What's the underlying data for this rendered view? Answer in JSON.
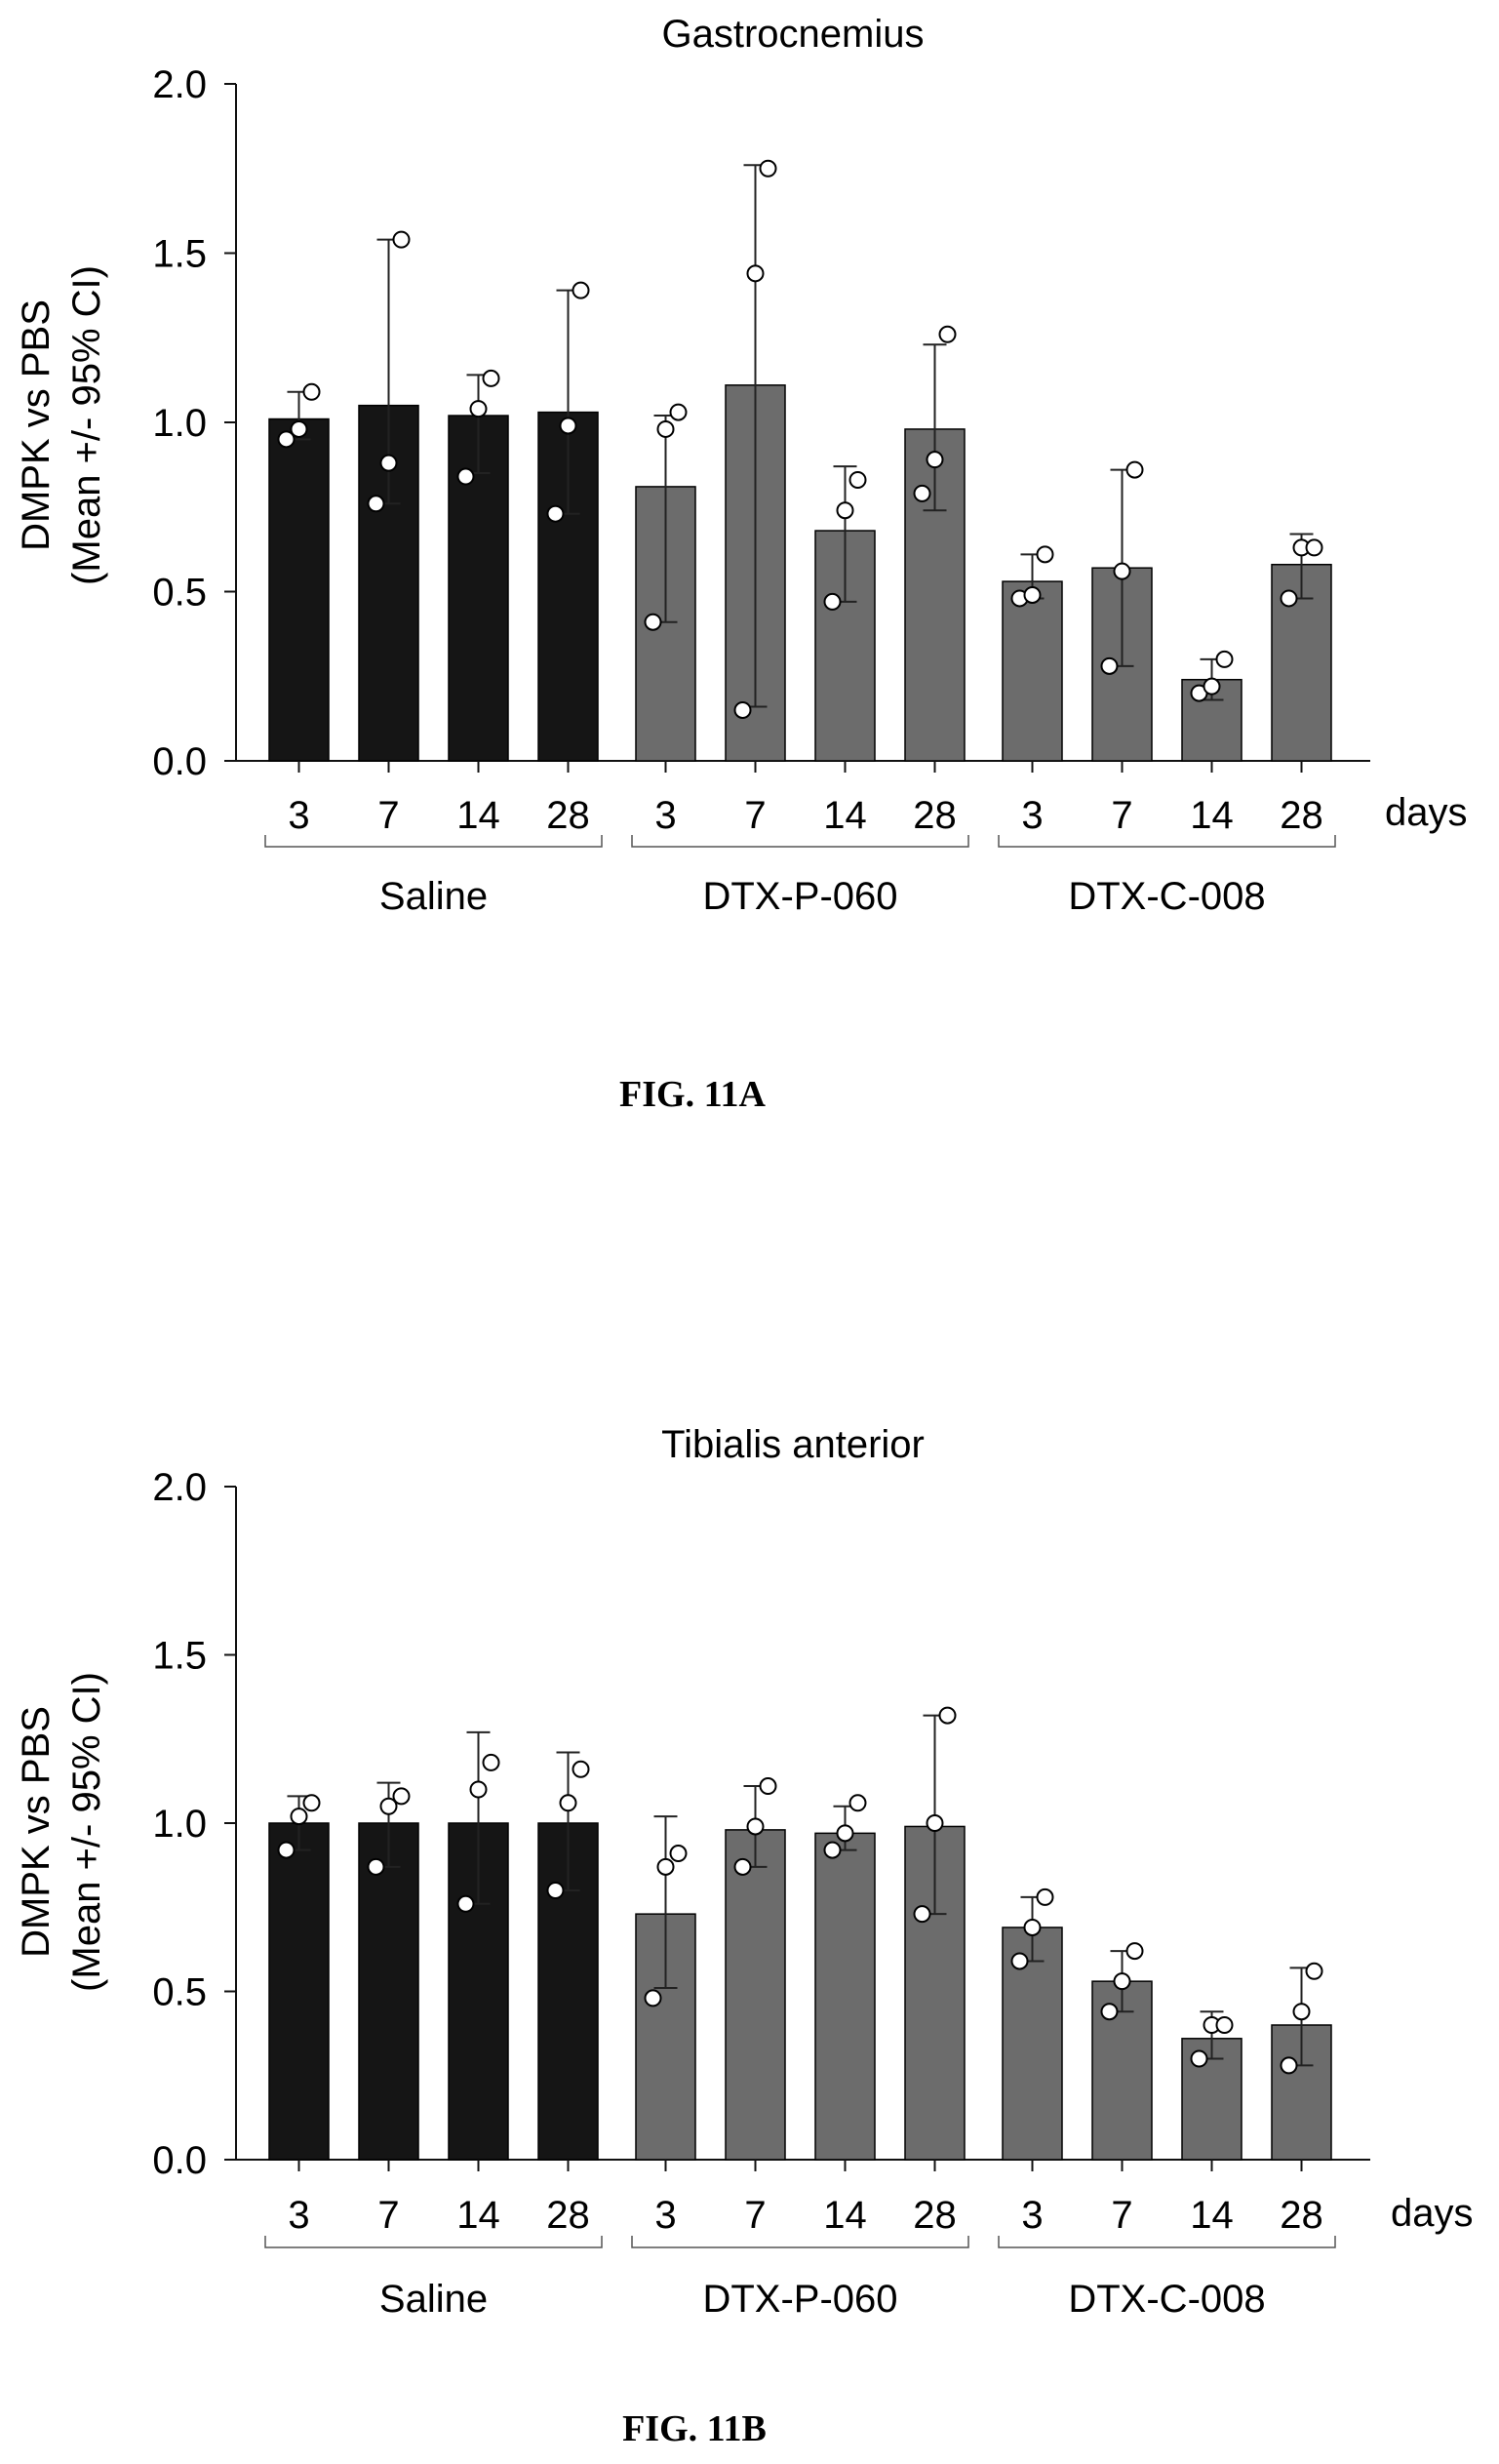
{
  "colors": {
    "saline": "#151515",
    "treated": "#6c6c6c",
    "axis": "#111111",
    "point_fill": "#ffffff"
  },
  "chart_data": [
    {
      "type": "bar",
      "title": "Gastrocnemius",
      "ylabel_line1": "DMPK vs PBS",
      "ylabel_line2": "(Mean +/- 95% CI)",
      "x_unit": "days",
      "ylim": [
        0,
        2.0
      ],
      "yticks": [
        "0.0",
        "0.5",
        "1.0",
        "1.5",
        "2.0"
      ],
      "categories": [
        "3",
        "7",
        "14",
        "28",
        "3",
        "7",
        "14",
        "28",
        "3",
        "7",
        "14",
        "28"
      ],
      "groups": [
        {
          "name": "Saline",
          "start": 0,
          "end": 3,
          "color_key": "saline"
        },
        {
          "name": "DTX-P-060",
          "start": 4,
          "end": 7,
          "color_key": "treated"
        },
        {
          "name": "DTX-C-008",
          "start": 8,
          "end": 11,
          "color_key": "treated"
        }
      ],
      "values": [
        1.01,
        1.05,
        1.02,
        1.03,
        0.81,
        1.11,
        0.68,
        0.98,
        0.53,
        0.57,
        0.24,
        0.58
      ],
      "ci_low": [
        0.95,
        0.76,
        0.85,
        0.73,
        0.41,
        0.16,
        0.47,
        0.74,
        0.48,
        0.28,
        0.18,
        0.48
      ],
      "ci_high": [
        1.09,
        1.54,
        1.14,
        1.39,
        1.02,
        1.76,
        0.87,
        1.23,
        0.61,
        0.86,
        0.3,
        0.67
      ],
      "points": [
        [
          0.95,
          0.98,
          1.09
        ],
        [
          0.76,
          0.88,
          1.54
        ],
        [
          0.84,
          1.04,
          1.13
        ],
        [
          0.73,
          0.99,
          1.39
        ],
        [
          0.41,
          0.98,
          1.03
        ],
        [
          0.15,
          1.44,
          1.75
        ],
        [
          0.47,
          0.74,
          0.83
        ],
        [
          0.79,
          0.89,
          1.26
        ],
        [
          0.48,
          0.49,
          0.61
        ],
        [
          0.28,
          0.56,
          0.86
        ],
        [
          0.2,
          0.22,
          0.3
        ],
        [
          0.48,
          0.63,
          0.63
        ]
      ],
      "caption": "FIG. 11A"
    },
    {
      "type": "bar",
      "title": "Tibialis anterior",
      "ylabel_line1": "DMPK vs PBS",
      "ylabel_line2": "(Mean +/- 95% CI)",
      "x_unit": "days",
      "ylim": [
        0,
        2.0
      ],
      "yticks": [
        "0.0",
        "0.5",
        "1.0",
        "1.5",
        "2.0"
      ],
      "categories": [
        "3",
        "7",
        "14",
        "28",
        "3",
        "7",
        "14",
        "28",
        "3",
        "7",
        "14",
        "28"
      ],
      "groups": [
        {
          "name": "Saline",
          "start": 0,
          "end": 3,
          "color_key": "saline"
        },
        {
          "name": "DTX-P-060",
          "start": 4,
          "end": 7,
          "color_key": "treated"
        },
        {
          "name": "DTX-C-008",
          "start": 8,
          "end": 11,
          "color_key": "treated"
        }
      ],
      "values": [
        1.0,
        1.0,
        1.0,
        1.0,
        0.73,
        0.98,
        0.97,
        0.99,
        0.69,
        0.53,
        0.36,
        0.4
      ],
      "ci_low": [
        0.92,
        0.87,
        0.76,
        0.8,
        0.51,
        0.87,
        0.92,
        0.73,
        0.59,
        0.44,
        0.3,
        0.28
      ],
      "ci_high": [
        1.08,
        1.12,
        1.27,
        1.21,
        1.02,
        1.11,
        1.05,
        1.32,
        0.78,
        0.62,
        0.44,
        0.57
      ],
      "points": [
        [
          0.92,
          1.02,
          1.06
        ],
        [
          0.87,
          1.05,
          1.08
        ],
        [
          0.76,
          1.1,
          1.18
        ],
        [
          0.8,
          1.06,
          1.16
        ],
        [
          0.48,
          0.87,
          0.91
        ],
        [
          0.87,
          0.99,
          1.11
        ],
        [
          0.92,
          0.97,
          1.06
        ],
        [
          0.73,
          1.0,
          1.32
        ],
        [
          0.59,
          0.69,
          0.78
        ],
        [
          0.44,
          0.53,
          0.62
        ],
        [
          0.3,
          0.4,
          0.4
        ],
        [
          0.28,
          0.44,
          0.56
        ]
      ],
      "caption": "FIG. 11B"
    }
  ]
}
